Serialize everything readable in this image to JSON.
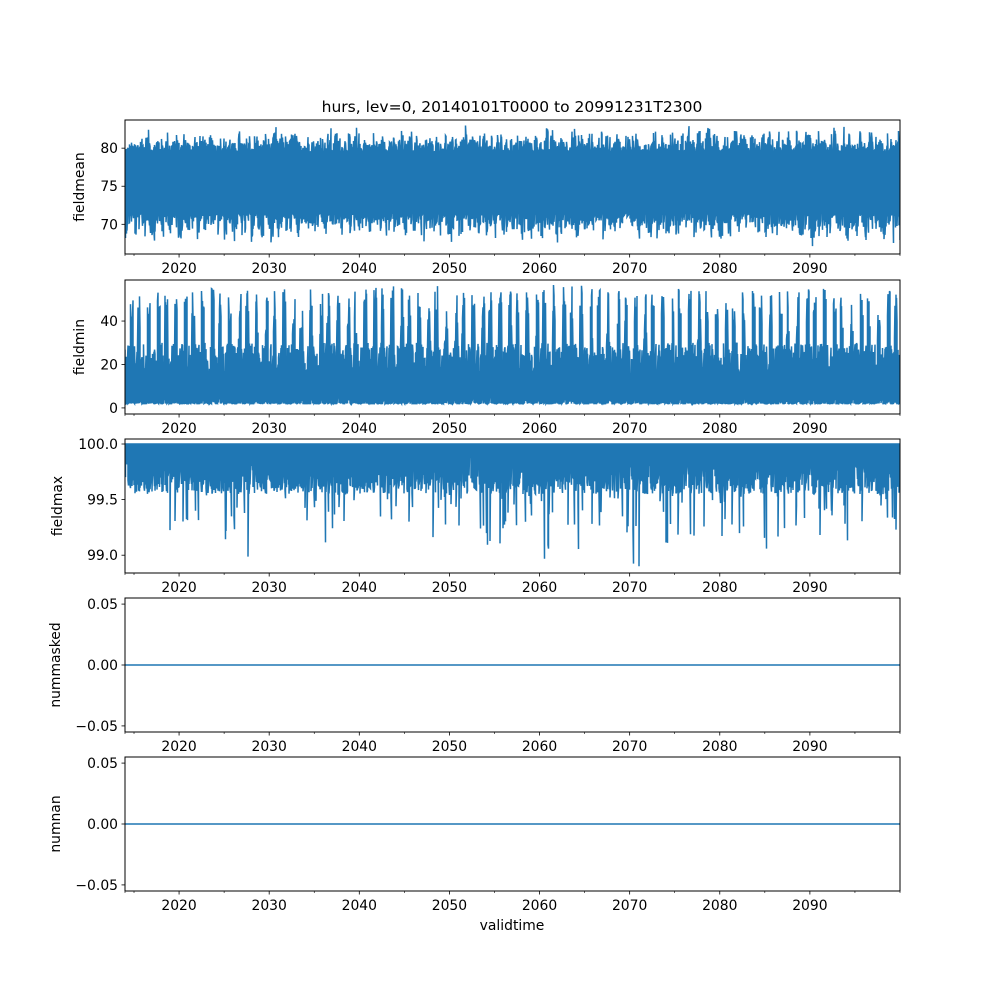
{
  "chart_data": {
    "type": "line",
    "title": "hurs, lev=0, 20140101T0000 to 20991231T2300",
    "xlabel": "validtime",
    "x_range": [
      "2014-01-01T00:00",
      "2099-12-31T23:00"
    ],
    "x_numeric_range": [
      2014.0,
      2100.0
    ],
    "x_ticks": [
      2020,
      2030,
      2040,
      2050,
      2060,
      2070,
      2080,
      2090
    ],
    "x_minor_ticks": [
      2014,
      2015,
      2025,
      2035,
      2045,
      2055,
      2065,
      2075,
      2085,
      2095,
      2100
    ],
    "line_color": "#1f77b4",
    "grid": false,
    "note": "dense hourly series; values summarised as 5-year bin envelopes",
    "bins": [
      "2014",
      "2015-2019",
      "2020-2024",
      "2025-2029",
      "2030-2034",
      "2035-2039",
      "2040-2044",
      "2045-2049",
      "2050-2054",
      "2055-2059",
      "2060-2064",
      "2065-2069",
      "2070-2074",
      "2075-2079",
      "2080-2084",
      "2085-2089",
      "2090-2094",
      "2095-2099"
    ],
    "panels": [
      {
        "ylabel": "fieldmean",
        "ylim": [
          66.1,
          83.7
        ],
        "y_ticks": [
          70,
          75,
          80
        ],
        "y_tick_labels": [
          "70",
          "75",
          "80"
        ],
        "typical_band": [
          70.5,
          80.5
        ],
        "bin_max": [
          81,
          82.5,
          82.5,
          82.5,
          83,
          83,
          82.5,
          82.5,
          83,
          82.5,
          83,
          82.5,
          82.5,
          83,
          82.5,
          82.5,
          83,
          82.5
        ],
        "bin_min": [
          68,
          67.5,
          68,
          67.5,
          67.5,
          68,
          68,
          67.5,
          67.5,
          67.5,
          67,
          68,
          68,
          68,
          68,
          67.5,
          67,
          67.5
        ]
      },
      {
        "ylabel": "fieldmin",
        "ylim": [
          -2.8,
          58.9
        ],
        "y_ticks": [
          0,
          20,
          40
        ],
        "y_tick_labels": [
          "0",
          "20",
          "40"
        ],
        "typical_band": [
          2,
          25
        ],
        "bin_max": [
          50,
          54,
          55,
          54,
          55,
          54,
          56,
          57,
          54,
          55,
          57,
          55,
          54,
          55,
          54,
          55,
          55,
          55
        ],
        "bin_min": [
          1,
          1,
          1,
          1,
          1,
          1,
          1,
          1,
          1,
          1,
          1,
          1,
          1,
          1,
          1,
          1,
          1,
          1
        ]
      },
      {
        "ylabel": "fieldmax",
        "ylim": [
          98.84,
          100.045
        ],
        "y_ticks": [
          99.0,
          99.5,
          100.0
        ],
        "y_tick_labels": [
          "99.0",
          "99.5",
          "100.0"
        ],
        "typical_band": [
          99.7,
          100.0
        ],
        "bin_max": [
          100,
          100,
          100,
          100,
          100,
          100,
          100,
          100,
          100,
          100,
          100,
          100,
          100,
          100,
          100,
          100,
          100,
          100
        ],
        "bin_min": [
          99.5,
          99.2,
          99.05,
          98.95,
          99.07,
          99.1,
          99.2,
          99.15,
          99.05,
          99.1,
          98.93,
          99.15,
          98.9,
          98.95,
          99.15,
          99.05,
          99.1,
          99.15
        ]
      },
      {
        "ylabel": "nummasked",
        "ylim": [
          -0.055,
          0.055
        ],
        "y_ticks": [
          -0.05,
          0.0,
          0.05
        ],
        "y_tick_labels": [
          "−0.05",
          "0.00",
          "0.05"
        ],
        "constant_value": 0
      },
      {
        "ylabel": "numnan",
        "ylim": [
          -0.055,
          0.055
        ],
        "y_ticks": [
          -0.05,
          0.0,
          0.05
        ],
        "y_tick_labels": [
          "−0.05",
          "0.00",
          "0.05"
        ],
        "constant_value": 0
      }
    ]
  }
}
